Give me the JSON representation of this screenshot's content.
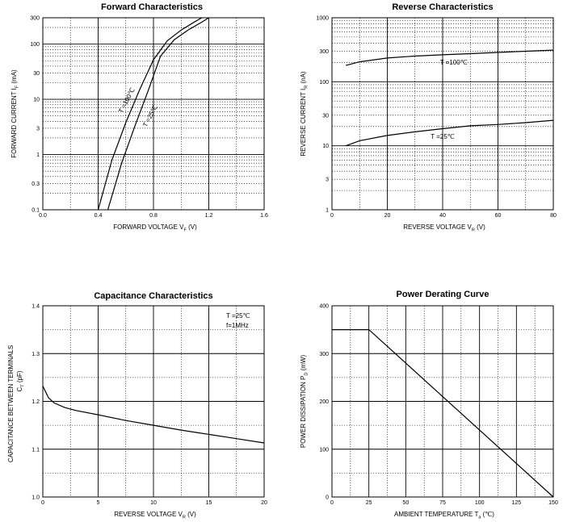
{
  "chart_data": [
    {
      "type": "line",
      "title": "Forward    Characteristics",
      "xlabel": "FORWARD VOLTAGE   V",
      "xlabel_sub": "F",
      "xlabel_unit": "(V)",
      "ylabel": "FORWARD CURRENT   I",
      "ylabel_sub": "F",
      "ylabel_unit": "(mA)",
      "xscale": "linear",
      "yscale": "log",
      "xlim": [
        0,
        1.6
      ],
      "ylim": [
        0.1,
        300
      ],
      "xticks": [
        "0.0",
        "0.4",
        "0.8",
        "1.2",
        "1.6"
      ],
      "yticks": [
        "0.1",
        "0.3",
        "1",
        "3",
        "10",
        "30",
        "100",
        "300"
      ],
      "grid": true,
      "series": [
        {
          "label": "T =100℃",
          "x": [
            0.4,
            0.5,
            0.6,
            0.7,
            0.8,
            0.9,
            1.0,
            1.1,
            1.15
          ],
          "y": [
            0.1,
            0.8,
            3.8,
            15,
            52,
            115,
            180,
            255,
            300
          ]
        },
        {
          "label": "T =25℃",
          "x": [
            0.47,
            0.57,
            0.67,
            0.76,
            0.85,
            0.95,
            1.05,
            1.15,
            1.2
          ],
          "y": [
            0.1,
            0.7,
            3.5,
            14,
            60,
            120,
            180,
            250,
            300
          ]
        }
      ]
    },
    {
      "type": "line",
      "title": "Reverse    Characteristics",
      "xlabel": "REVERSE VOLTAGE   V",
      "xlabel_sub": "R",
      "xlabel_unit": "(V)",
      "ylabel": "REVERSE CURRENT   I",
      "ylabel_sub": "R",
      "ylabel_unit": "(nA)",
      "xscale": "linear",
      "yscale": "log",
      "xlim": [
        0,
        80
      ],
      "ylim": [
        1,
        1000
      ],
      "xticks": [
        "0",
        "20",
        "40",
        "60",
        "80"
      ],
      "yticks": [
        "1",
        "3",
        "10",
        "30",
        "100",
        "300",
        "1000"
      ],
      "grid": true,
      "series": [
        {
          "label": "T =100℃",
          "x": [
            5,
            10,
            20,
            30,
            40,
            50,
            60,
            70,
            80
          ],
          "y": [
            180,
            205,
            235,
            252,
            264,
            275,
            287,
            300,
            312
          ]
        },
        {
          "label": "T =25℃",
          "x": [
            5,
            10,
            20,
            30,
            40,
            50,
            60,
            70,
            80
          ],
          "y": [
            10,
            12,
            14.5,
            16.5,
            18.5,
            20.5,
            21.5,
            23,
            25
          ]
        }
      ]
    },
    {
      "type": "line",
      "title": "Capacitance Characteristics",
      "xlabel": "REVERSE VOLTAGE   V",
      "xlabel_sub": "R",
      "xlabel_unit": "(V)",
      "ylabel": "CAPACITANCE BETWEEN TERMINALS",
      "ylabel2": "C",
      "ylabel2_sub": "T",
      "ylabel2_unit": "(pF)",
      "xscale": "linear",
      "yscale": "linear",
      "xlim": [
        0,
        20
      ],
      "ylim": [
        1.0,
        1.4
      ],
      "xticks": [
        "0",
        "5",
        "10",
        "15",
        "20"
      ],
      "yticks": [
        "1.0",
        "1.1",
        "1.2",
        "1.3",
        "1.4"
      ],
      "grid": true,
      "annotation": [
        "T =25℃",
        "f=1MHz"
      ],
      "series": [
        {
          "x": [
            0,
            0.5,
            1,
            2,
            3,
            5,
            7.5,
            10,
            12.5,
            15,
            17.5,
            20
          ],
          "y": [
            1.232,
            1.208,
            1.197,
            1.187,
            1.181,
            1.172,
            1.16,
            1.15,
            1.14,
            1.131,
            1.122,
            1.113
          ]
        }
      ]
    },
    {
      "type": "line",
      "title": "Power Derating Curve",
      "xlabel": "AMBIENT TEMPERATURE   T",
      "xlabel_sub": "a",
      "xlabel_unit": "(℃)",
      "ylabel": "POWER DISSIPATION   P",
      "ylabel_sub": "D",
      "ylabel_unit": "(mW)",
      "xscale": "linear",
      "yscale": "linear",
      "xlim": [
        0,
        150
      ],
      "ylim": [
        0,
        400
      ],
      "xticks": [
        "0",
        "25",
        "50",
        "75",
        "100",
        "125",
        "150"
      ],
      "yticks": [
        "0",
        "100",
        "200",
        "300",
        "400"
      ],
      "grid": true,
      "series": [
        {
          "x": [
            0,
            25,
            150
          ],
          "y": [
            350,
            350,
            0
          ]
        }
      ]
    }
  ]
}
